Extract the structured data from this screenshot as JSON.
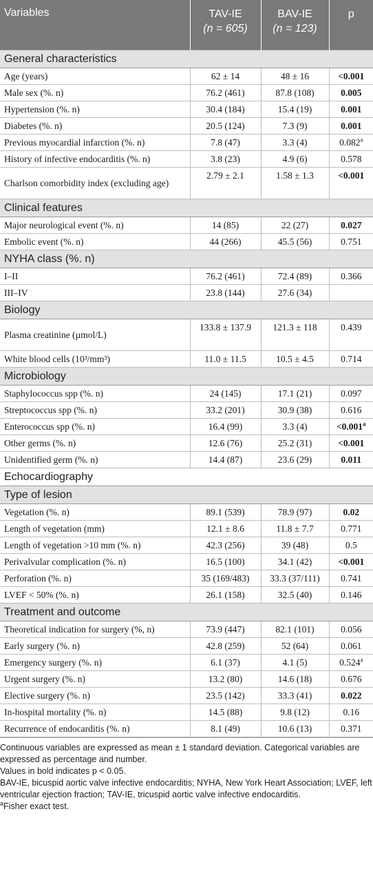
{
  "header": {
    "variables": "Variables",
    "tav_label": "TAV-IE",
    "tav_n": "(n = 605)",
    "bav_label": "BAV-IE",
    "bav_n": "(n = 123)",
    "p": "p"
  },
  "sections": [
    {
      "title": "General characteristics",
      "rows": [
        {
          "name": "Age (years)",
          "tav": "62 ± 14",
          "bav": "48 ± 16",
          "p": "<0.001",
          "bold": true,
          "sup": ""
        },
        {
          "name": "Male sex (%. n)",
          "tav": "76.2 (461)",
          "bav": "87.8 (108)",
          "p": "0.005",
          "bold": true,
          "sup": ""
        },
        {
          "name": "Hypertension (%. n)",
          "tav": "30.4 (184)",
          "bav": "15.4 (19)",
          "p": "0.001",
          "bold": true,
          "sup": ""
        },
        {
          "name": "Diabetes (%. n)",
          "tav": "20.5 (124)",
          "bav": "7.3 (9)",
          "p": "0.001",
          "bold": true,
          "sup": ""
        },
        {
          "name": "Previous myocardial infarction (%. n)",
          "tav": "7.8 (47)",
          "bav": "3.3 (4)",
          "p": "0.082",
          "bold": false,
          "sup": "a"
        },
        {
          "name": "History of infective endocarditis (%. n)",
          "tav": "3.8 (23)",
          "bav": "4.9 (6)",
          "p": "0.578",
          "bold": false,
          "sup": ""
        },
        {
          "name": "Charlson comorbidity index (excluding age)",
          "tav": "2.79 ± 2.1",
          "bav": "1.58 ± 1.3",
          "p": "<0.001",
          "bold": true,
          "sup": "",
          "tall": true
        }
      ]
    },
    {
      "title": "Clinical features",
      "rows": [
        {
          "name": "Major neurological event (%. n)",
          "tav": "14 (85)",
          "bav": "22 (27)",
          "p": "0.027",
          "bold": true,
          "sup": ""
        },
        {
          "name": "Embolic event (%. n)",
          "tav": "44 (266)",
          "bav": "45.5 (56)",
          "p": "0.751",
          "bold": false,
          "sup": ""
        }
      ]
    },
    {
      "title": "NYHA class (%. n)",
      "rows": [
        {
          "name": "I–II",
          "tav": "76.2 (461)",
          "bav": "72.4 (89)",
          "p": "0.366",
          "bold": false,
          "sup": ""
        },
        {
          "name": "III–IV",
          "tav": "23.8 (144)",
          "bav": "27.6 (34)",
          "p": "",
          "bold": false,
          "sup": ""
        }
      ]
    },
    {
      "title": "Biology",
      "rows": [
        {
          "name": "Plasma creatinine (µmol/L)",
          "tav": "133.8 ± 137.9",
          "bav": "121.3 ± 118",
          "p": "0.439",
          "bold": false,
          "sup": "",
          "tall": true
        },
        {
          "name": "White blood cells (10³/mm³)",
          "tav": "11.0 ± 11.5",
          "bav": "10.5 ± 4.5",
          "p": "0.714",
          "bold": false,
          "sup": ""
        }
      ]
    },
    {
      "title": "Microbiology",
      "rows": [
        {
          "name": "Staphylococcus spp (%. n)",
          "tav": "24 (145)",
          "bav": "17.1 (21)",
          "p": "0.097",
          "bold": false,
          "sup": ""
        },
        {
          "name": "Streptococcus spp (%. n)",
          "tav": "33.2 (201)",
          "bav": "30.9 (38)",
          "p": "0.616",
          "bold": false,
          "sup": ""
        },
        {
          "name": "Enterococcus spp (%. n)",
          "tav": "16.4 (99)",
          "bav": "3.3 (4)",
          "p": "<0.001",
          "bold": true,
          "sup": "a"
        },
        {
          "name": "Other germs (%. n)",
          "tav": "12.6 (76)",
          "bav": "25.2 (31)",
          "p": "<0.001",
          "bold": true,
          "sup": ""
        },
        {
          "name": "Unidentified germ (%. n)",
          "tav": "14.4 (87)",
          "bav": "23.6 (29)",
          "p": "0.011",
          "bold": true,
          "sup": ""
        }
      ]
    },
    {
      "title": "Echocardiography",
      "plain": true,
      "rows": []
    },
    {
      "title": "Type of lesion",
      "rows": [
        {
          "name": "Vegetation (%. n)",
          "tav": "89.1 (539)",
          "bav": "78.9 (97)",
          "p": "0.02",
          "bold": true,
          "sup": ""
        },
        {
          "name": "Length of vegetation (mm)",
          "tav": "12.1 ± 8.6",
          "bav": "11.8 ± 7.7",
          "p": "0.771",
          "bold": false,
          "sup": ""
        },
        {
          "name": "Length of vegetation >10 mm (%. n)",
          "tav": "42.3 (256)",
          "bav": "39 (48)",
          "p": "0.5",
          "bold": false,
          "sup": ""
        },
        {
          "name": "Perivalvular complication (%. n)",
          "tav": "16.5 (100)",
          "bav": "34.1 (42)",
          "p": "<0.001",
          "bold": true,
          "sup": ""
        },
        {
          "name": "Perforation (%. n)",
          "tav": "35 (169/483)",
          "bav": "33.3 (37/111)",
          "p": "0.741",
          "bold": false,
          "sup": ""
        },
        {
          "name": "LVEF < 50% (%. n)",
          "tav": "26.1 (158)",
          "bav": "32.5 (40)",
          "p": "0.146",
          "bold": false,
          "sup": ""
        }
      ]
    },
    {
      "title": "Treatment and outcome",
      "rows": [
        {
          "name": "Theoretical indication for surgery (%, n)",
          "tav": "73.9 (447)",
          "bav": "82.1 (101)",
          "p": "0.056",
          "bold": false,
          "sup": ""
        },
        {
          "name": "Early surgery (%. n)",
          "tav": "42.8 (259)",
          "bav": "52 (64)",
          "p": "0.061",
          "bold": false,
          "sup": ""
        },
        {
          "name": "Emergency surgery (%. n)",
          "tav": "6.1 (37)",
          "bav": "4.1 (5)",
          "p": "0.524",
          "bold": false,
          "sup": "a"
        },
        {
          "name": "Urgent surgery (%. n)",
          "tav": "13.2 (80)",
          "bav": "14.6 (18)",
          "p": "0.676",
          "bold": false,
          "sup": ""
        },
        {
          "name": "Elective surgery (%. n)",
          "tav": "23.5 (142)",
          "bav": "33.3 (41)",
          "p": "0.022",
          "bold": true,
          "sup": ""
        },
        {
          "name": "In-hospital mortality (%. n)",
          "tav": "14.5 (88)",
          "bav": "9.8 (12)",
          "p": "0.16",
          "bold": false,
          "sup": ""
        },
        {
          "name": "Recurrence of endocarditis (%. n)",
          "tav": "8.1 (49)",
          "bav": "10.6 (13)",
          "p": "0.371",
          "bold": false,
          "sup": ""
        }
      ]
    }
  ],
  "footnotes": {
    "continuous": "Continuous variables are expressed as mean ± 1 standard deviation. Categorical variables are expressed as percentage and number.",
    "bold": "Values in bold indicates p < 0.05.",
    "abbrev": "BAV-IE, bicuspid aortic valve infective endocarditis; NYHA, New York Heart Association; LVEF, left ventricular ejection fraction; TAV-IE, tricuspid aortic valve infective endocarditis.",
    "fisher_mark": "a",
    "fisher": "Fisher exact test."
  }
}
